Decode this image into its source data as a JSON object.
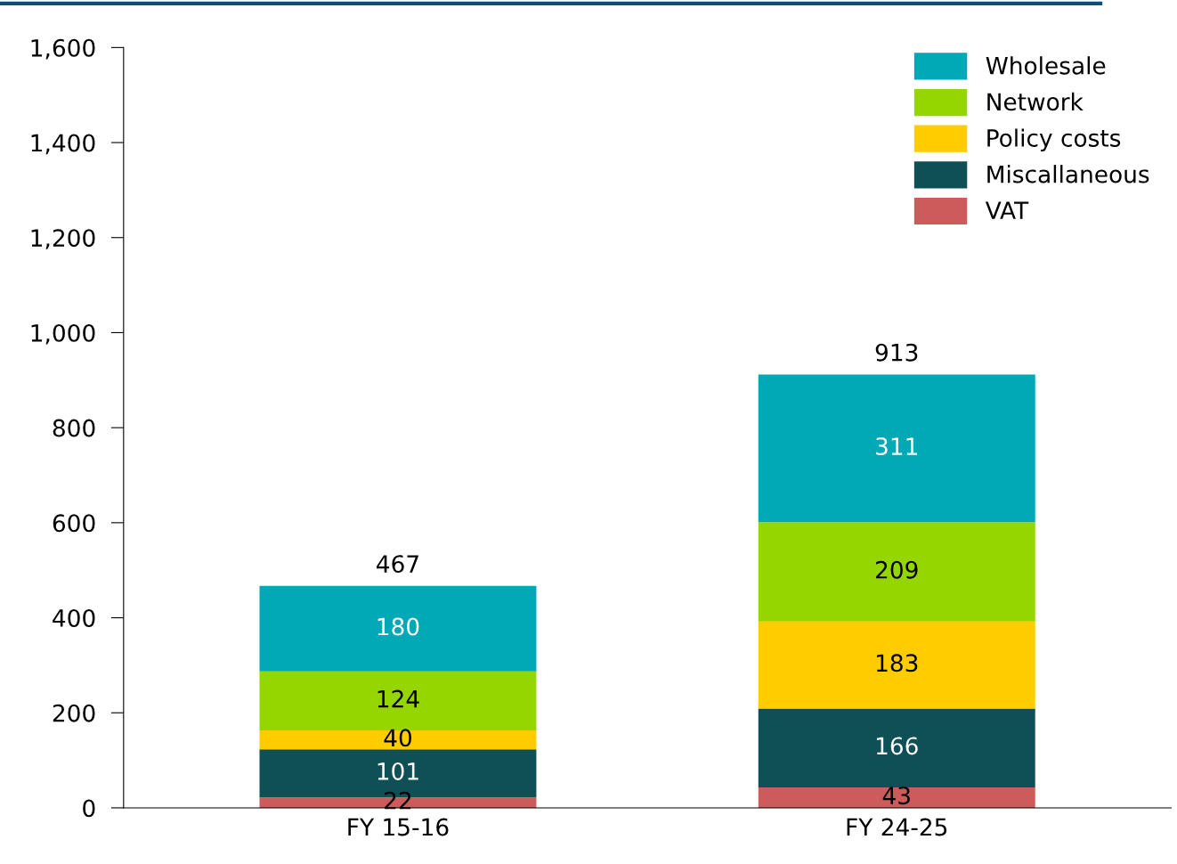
{
  "chart_data": {
    "type": "bar",
    "stacked": true,
    "categories": [
      "FY 15-16",
      "FY 24-25"
    ],
    "series": [
      {
        "name": "VAT",
        "color": "#cd5b5b",
        "values": [
          22,
          43
        ]
      },
      {
        "name": "Miscallaneous",
        "color": "#0f5057",
        "values": [
          101,
          166
        ]
      },
      {
        "name": "Policy costs",
        "color": "#ffcc00",
        "values": [
          40,
          183
        ]
      },
      {
        "name": "Network",
        "color": "#96d600",
        "values": [
          124,
          209
        ]
      },
      {
        "name": "Wholesale",
        "color": "#00a9b5",
        "values": [
          180,
          311
        ]
      }
    ],
    "totals": [
      "467",
      "913"
    ],
    "data_labels": true,
    "ylim": [
      0,
      1600
    ],
    "yticks": [
      0,
      {
        "value": 200,
        "label": "200"
      },
      {
        "value": 400,
        "label": "400"
      },
      {
        "value": 600,
        "label": "600"
      },
      {
        "value": 800,
        "label": "800"
      },
      {
        "value": 1000,
        "label": "1,000"
      },
      {
        "value": 1200,
        "label": "1,200"
      },
      {
        "value": 1400,
        "label": "1,400"
      },
      {
        "value": 1600,
        "label": "1,600"
      }
    ],
    "grid": false,
    "legend": "top right"
  }
}
